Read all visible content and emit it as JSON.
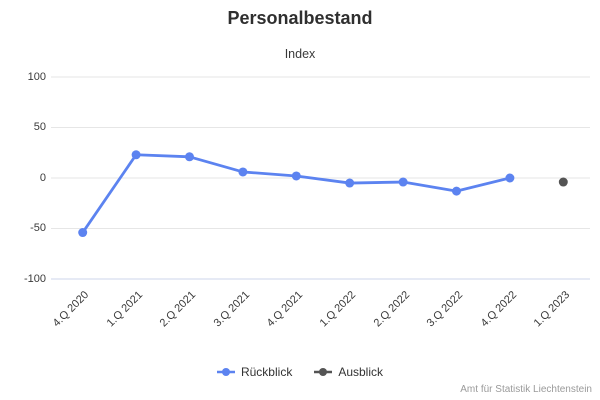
{
  "chart_data": {
    "type": "line",
    "title": "Personalbestand",
    "subtitle": "Index",
    "categories": [
      "4.Q 2020",
      "1.Q 2021",
      "2.Q 2021",
      "3.Q 2021",
      "4.Q 2021",
      "1.Q 2022",
      "2.Q 2022",
      "3.Q 2022",
      "4.Q 2022",
      "1.Q 2023"
    ],
    "series": [
      {
        "name": "Rückblick",
        "color": "#5c83f0",
        "values": [
          -54,
          23,
          21,
          6,
          2,
          -5,
          -4,
          -13,
          0,
          null
        ]
      },
      {
        "name": "Ausblick",
        "color": "#545454",
        "values": [
          null,
          null,
          null,
          null,
          null,
          null,
          null,
          null,
          null,
          -4
        ]
      }
    ],
    "ylim": [
      -100,
      100
    ],
    "ytick_step": 50,
    "grid": true,
    "grid_color": "#e6e6e6",
    "axis_line_color": "#ccd6eb",
    "legend_position": "bottom"
  },
  "credits": "Amt für Statistik Liechtenstein"
}
